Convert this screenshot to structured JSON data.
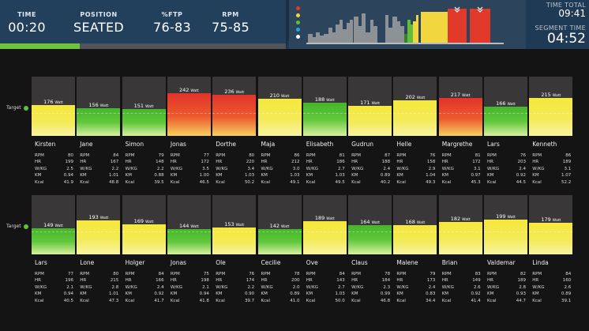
{
  "header": {
    "cells": [
      {
        "label": "TIME",
        "value": "00:20"
      },
      {
        "label": "POSITION",
        "value": "SEATED"
      },
      {
        "label": "%FTP",
        "value": "76-83"
      },
      {
        "label": "RPM",
        "value": "75-85"
      }
    ],
    "progress_fraction": 0.28
  },
  "workout_chart": {
    "zone_colors": [
      "#e23a2a",
      "#f2d640",
      "#5fbf3a",
      "#27a4d8",
      "#ffffff"
    ],
    "indicator_icon": "chevron-down-icon"
  },
  "right_info": {
    "time_total_label": "TIME TOTAL",
    "time_total_value": "09:41",
    "segment_time_label": "SEGMENT TIME",
    "segment_time_value": "04:52"
  },
  "target_label": "Target",
  "watt_unit": "Watt",
  "stat_labels": [
    "RPM",
    "HR",
    "W/KG",
    "KM",
    "Kcal"
  ],
  "colors": {
    "green": "#5fbf3a",
    "yellow": "#f3e63a",
    "red": "#e3332a"
  },
  "rows": [
    [
      {
        "name": "Kirsten",
        "watt": "176",
        "zone": "yellow",
        "rpm": "80",
        "hr": "199",
        "wkg": "2.5",
        "km": "0.94",
        "kcal": "41.9"
      },
      {
        "name": "Jane",
        "watt": "156",
        "zone": "green",
        "rpm": "84",
        "hr": "167",
        "wkg": "2.2",
        "km": "1.01",
        "kcal": "48.8"
      },
      {
        "name": "Simon",
        "watt": "151",
        "zone": "green",
        "rpm": "79",
        "hr": "148",
        "wkg": "2.2",
        "km": "0.88",
        "kcal": "39.5"
      },
      {
        "name": "Jonas",
        "watt": "242",
        "zone": "red",
        "rpm": "77",
        "hr": "172",
        "wkg": "3.5",
        "km": "1.00",
        "kcal": "46.5"
      },
      {
        "name": "Dorthe",
        "watt": "236",
        "zone": "red",
        "rpm": "80",
        "hr": "220",
        "wkg": "3.4",
        "km": "1.03",
        "kcal": "50.2"
      },
      {
        "name": "Maja",
        "watt": "210",
        "zone": "yellow",
        "rpm": "86",
        "hr": "212",
        "wkg": "3.0",
        "km": "1.03",
        "kcal": "49.1"
      },
      {
        "name": "Elisabeth",
        "watt": "188",
        "zone": "green",
        "rpm": "81",
        "hr": "186",
        "wkg": "2.7",
        "km": "1.03",
        "kcal": "49.5"
      },
      {
        "name": "Gudrun",
        "watt": "171",
        "zone": "yellow",
        "rpm": "87",
        "hr": "188",
        "wkg": "2.4",
        "km": "0.89",
        "kcal": "40.2"
      },
      {
        "name": "Helle",
        "watt": "202",
        "zone": "yellow",
        "rpm": "76",
        "hr": "158",
        "wkg": "2.9",
        "km": "1.04",
        "kcal": "49.3"
      },
      {
        "name": "Margrethe",
        "watt": "217",
        "zone": "red",
        "rpm": "81",
        "hr": "172",
        "wkg": "3.1",
        "km": "0.97",
        "kcal": "45.3"
      },
      {
        "name": "Lars",
        "watt": "166",
        "zone": "green",
        "rpm": "76",
        "hr": "203",
        "wkg": "2.4",
        "km": "0.92",
        "kcal": "44.5"
      },
      {
        "name": "Kenneth",
        "watt": "215",
        "zone": "yellow",
        "rpm": "86",
        "hr": "189",
        "wkg": "3.1",
        "km": "1.07",
        "kcal": "52.2"
      }
    ],
    [
      {
        "name": "Lars",
        "watt": "149",
        "zone": "green",
        "rpm": "77",
        "hr": "196",
        "wkg": "2.1",
        "km": "0.94",
        "kcal": "40.5"
      },
      {
        "name": "Lone",
        "watt": "193",
        "zone": "yellow",
        "rpm": "80",
        "hr": "215",
        "wkg": "2.8",
        "km": "1.01",
        "kcal": "47.3"
      },
      {
        "name": "Holger",
        "watt": "169",
        "zone": "yellow",
        "rpm": "84",
        "hr": "166",
        "wkg": "2.4",
        "km": "0.92",
        "kcal": "41.7"
      },
      {
        "name": "Jonas",
        "watt": "144",
        "zone": "green",
        "rpm": "75",
        "hr": "198",
        "wkg": "2.1",
        "km": "0.94",
        "kcal": "41.8"
      },
      {
        "name": "Ole",
        "watt": "153",
        "zone": "yellow",
        "rpm": "76",
        "hr": "174",
        "wkg": "2.2",
        "km": "0.90",
        "kcal": "39.7"
      },
      {
        "name": "Cecilie",
        "watt": "142",
        "zone": "green",
        "rpm": "78",
        "hr": "200",
        "wkg": "2.0",
        "km": "0.89",
        "kcal": "41.0"
      },
      {
        "name": "Ove",
        "watt": "189",
        "zone": "yellow",
        "rpm": "84",
        "hr": "143",
        "wkg": "2.7",
        "km": "1.03",
        "kcal": "50.0"
      },
      {
        "name": "Claus",
        "watt": "164",
        "zone": "green",
        "rpm": "78",
        "hr": "184",
        "wkg": "2.3",
        "km": "0.99",
        "kcal": "46.8"
      },
      {
        "name": "Malene",
        "watt": "168",
        "zone": "yellow",
        "rpm": "79",
        "hr": "173",
        "wkg": "2.4",
        "km": "0.83",
        "kcal": "34.4"
      },
      {
        "name": "Brian",
        "watt": "182",
        "zone": "yellow",
        "rpm": "83",
        "hr": "149",
        "wkg": "2.6",
        "km": "0.92",
        "kcal": "41.4"
      },
      {
        "name": "Valdemar",
        "watt": "199",
        "zone": "yellow",
        "rpm": "82",
        "hr": "189",
        "wkg": "2.8",
        "km": "0.93",
        "kcal": "44.7"
      },
      {
        "name": "Linda",
        "watt": "179",
        "zone": "yellow",
        "rpm": "84",
        "hr": "160",
        "wkg": "2.6",
        "km": "0.89",
        "kcal": "39.1"
      }
    ]
  ]
}
